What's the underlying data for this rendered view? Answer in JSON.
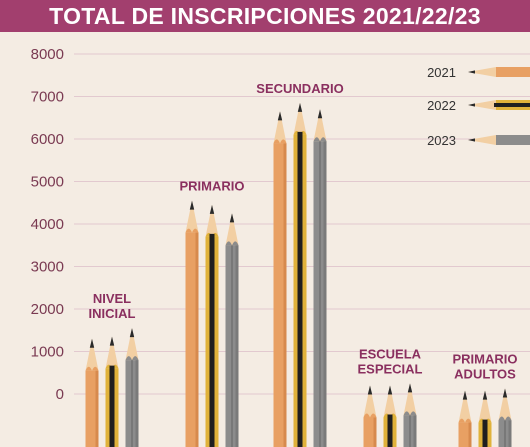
{
  "title": "TOTAL DE INSCRIPCIONES 2021/22/23",
  "colors": {
    "title_bg": "#a23f6e",
    "background": "#f4ece3",
    "gridline": "#e2c9cf",
    "category_label": "#8a2f5f",
    "tick_label": "#7a3a52",
    "series_2021": "#e8a063",
    "series_2022": "#e0b23a",
    "series_2023": "#8c8c8c",
    "wood": "#f2cfa3",
    "lead": "#2a2a2a"
  },
  "chart_data": {
    "type": "bar",
    "title": "TOTAL DE INSCRIPCIONES 2021/22/23",
    "xlabel": "",
    "ylabel": "",
    "ylim": [
      0,
      8000
    ],
    "yticks": [
      0,
      1000,
      2000,
      3000,
      4000,
      5000,
      6000,
      7000,
      8000
    ],
    "grid": true,
    "legend_position": "top-right",
    "categories": [
      [
        "NIVEL",
        "INICIAL"
      ],
      [
        "PRIMARIO"
      ],
      [
        "SECUNDARIO"
      ],
      [
        "ESCUELA",
        "ESPECIAL"
      ],
      [
        "PRIMARIO",
        "ADULTOS"
      ]
    ],
    "series": [
      {
        "name": "2021",
        "values": [
          1300,
          4550,
          6650,
          200,
          80
        ]
      },
      {
        "name": "2022",
        "values": [
          1350,
          4450,
          6850,
          200,
          80
        ]
      },
      {
        "name": "2023",
        "values": [
          1550,
          4250,
          6700,
          250,
          130
        ]
      }
    ]
  }
}
